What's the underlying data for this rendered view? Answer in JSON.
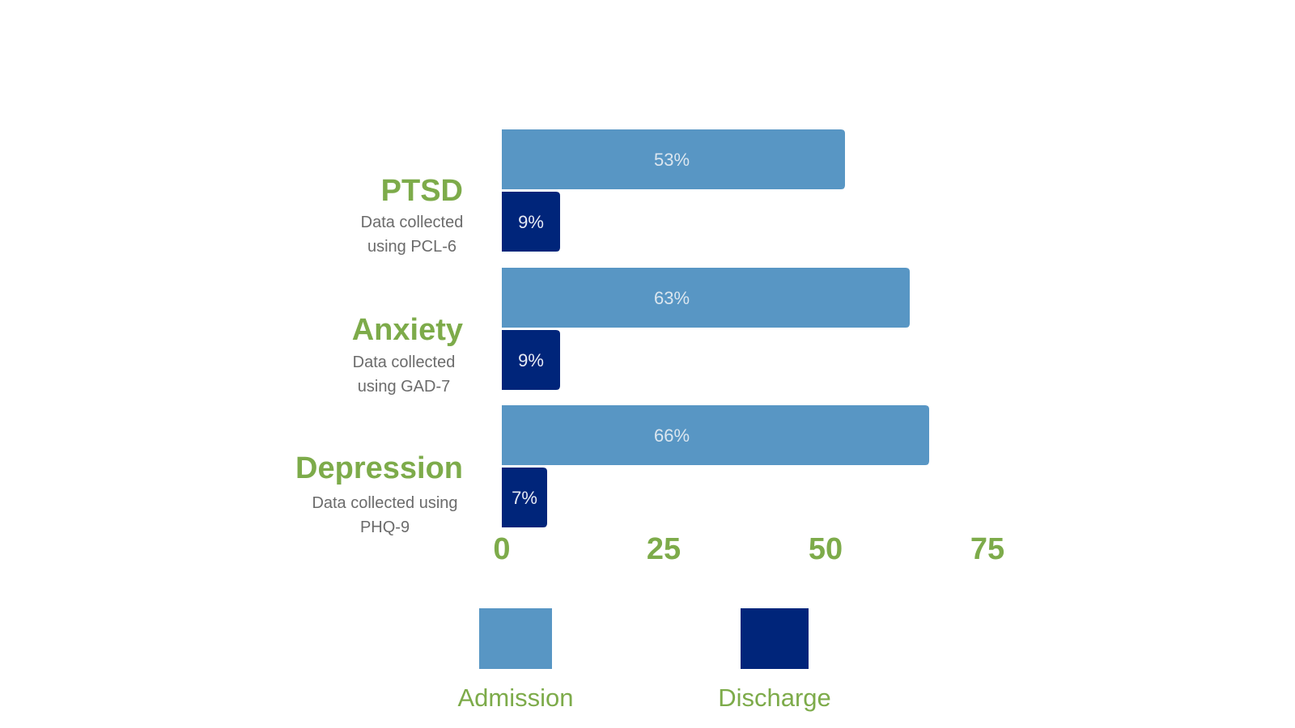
{
  "chart_data": {
    "type": "bar",
    "orientation": "horizontal",
    "categories": [
      {
        "name": "PTSD",
        "note": "Data collected using PCL-6"
      },
      {
        "name": "Anxiety",
        "note": "Data collected using GAD-7"
      },
      {
        "name": "Depression",
        "note": "Data collected using PHQ-9"
      }
    ],
    "series": [
      {
        "name": "Admission",
        "color": "#5896c4",
        "values": [
          53,
          63,
          66
        ],
        "labels": [
          "53%",
          "63%",
          "66%"
        ]
      },
      {
        "name": "Discharge",
        "color": "#00257a",
        "values": [
          9,
          9,
          7
        ],
        "labels": [
          "9%",
          "9%",
          "7%"
        ]
      }
    ],
    "xticks": [
      "0",
      "25",
      "50",
      "75"
    ],
    "xlim": [
      0,
      75
    ],
    "grid": false,
    "legend_position": "bottom"
  }
}
